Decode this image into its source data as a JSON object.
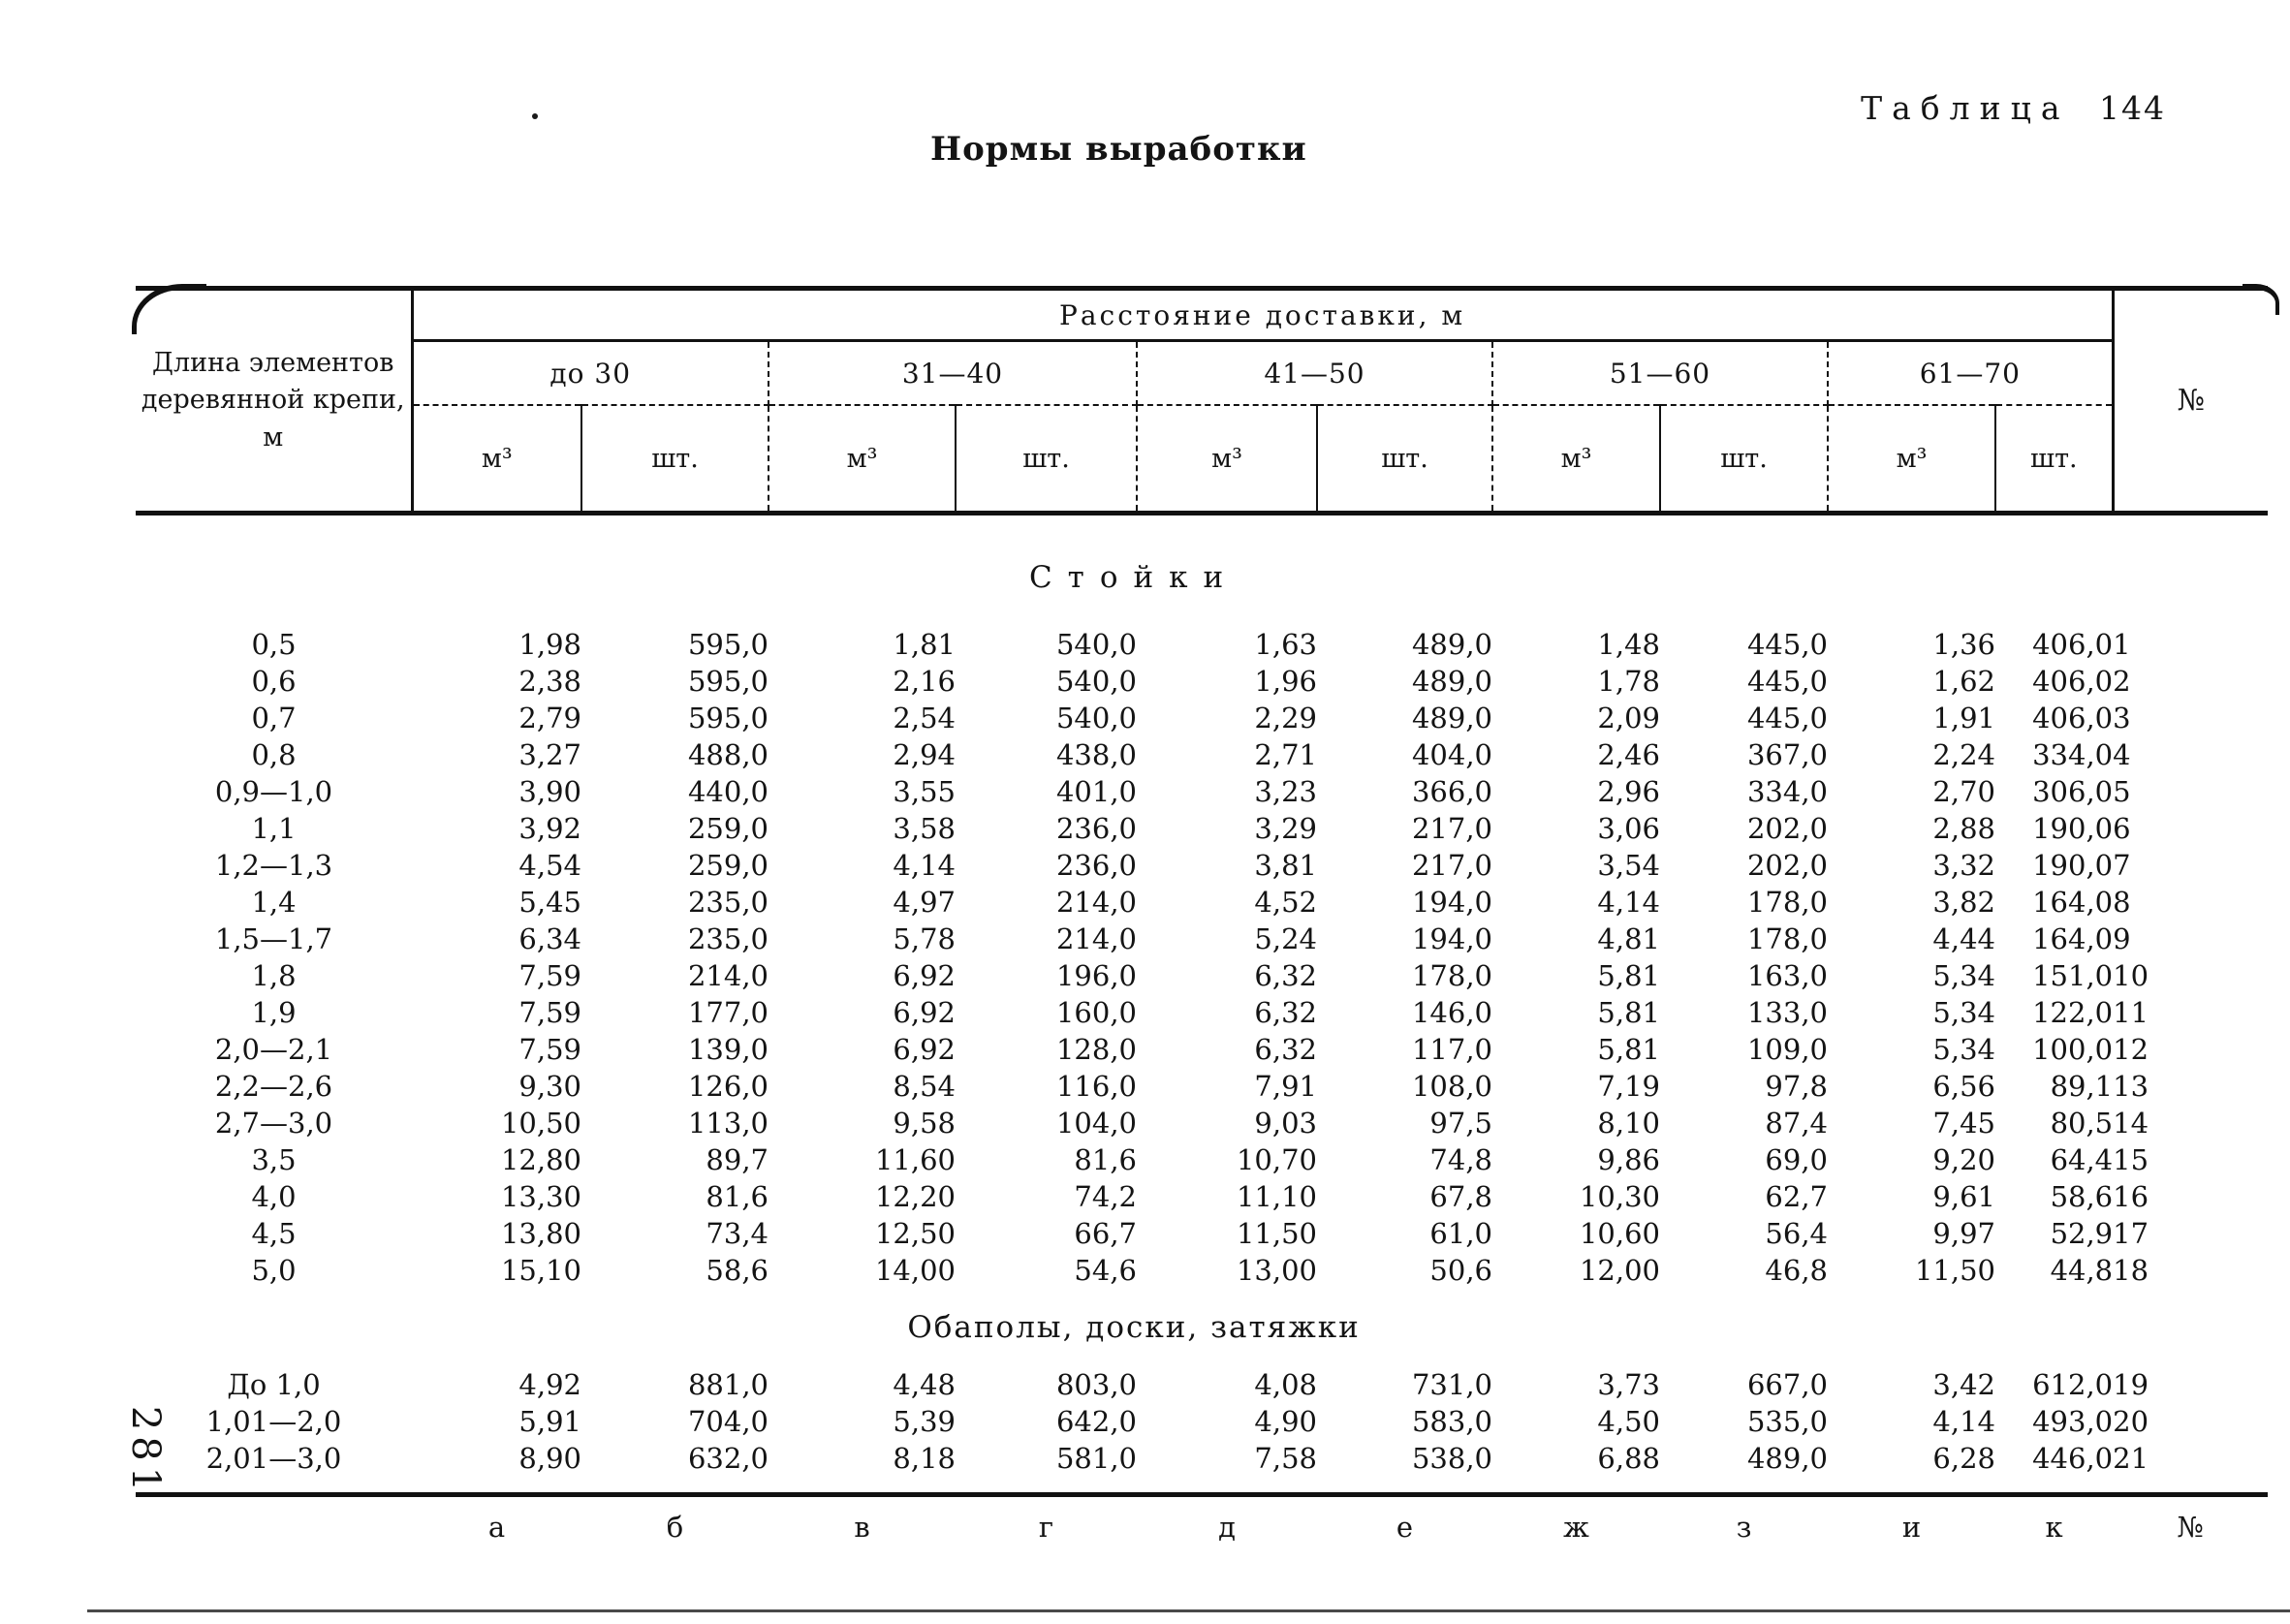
{
  "page": {
    "table_caption_word": "Таблица",
    "table_caption_number": "144",
    "title": "Нормы выработки",
    "page_number": "281"
  },
  "table": {
    "row_header": "Длина элементов деревянной крепи, м",
    "span_header": "Расстояние доставки, м",
    "distance_groups": [
      "до 30",
      "31—40",
      "41—50",
      "51—60",
      "61—70"
    ],
    "unit_volume": "м³",
    "unit_count": "шт.",
    "number_header": "№",
    "column_letters": [
      "а",
      "б",
      "в",
      "г",
      "д",
      "е",
      "ж",
      "з",
      "и",
      "к",
      "№"
    ],
    "sections": [
      {
        "title": "Стойки",
        "rows": [
          {
            "label": "0,5",
            "values": [
              "1,98",
              "595,0",
              "1,81",
              "540,0",
              "1,63",
              "489,0",
              "1,48",
              "445,0",
              "1,36",
              "406,0"
            ],
            "num": "1"
          },
          {
            "label": "0,6",
            "values": [
              "2,38",
              "595,0",
              "2,16",
              "540,0",
              "1,96",
              "489,0",
              "1,78",
              "445,0",
              "1,62",
              "406,0"
            ],
            "num": "2"
          },
          {
            "label": "0,7",
            "values": [
              "2,79",
              "595,0",
              "2,54",
              "540,0",
              "2,29",
              "489,0",
              "2,09",
              "445,0",
              "1,91",
              "406,0"
            ],
            "num": "3"
          },
          {
            "label": "0,8",
            "values": [
              "3,27",
              "488,0",
              "2,94",
              "438,0",
              "2,71",
              "404,0",
              "2,46",
              "367,0",
              "2,24",
              "334,0"
            ],
            "num": "4"
          },
          {
            "label": "0,9—1,0",
            "values": [
              "3,90",
              "440,0",
              "3,55",
              "401,0",
              "3,23",
              "366,0",
              "2,96",
              "334,0",
              "2,70",
              "306,0"
            ],
            "num": "5"
          },
          {
            "label": "1,1",
            "values": [
              "3,92",
              "259,0",
              "3,58",
              "236,0",
              "3,29",
              "217,0",
              "3,06",
              "202,0",
              "2,88",
              "190,0"
            ],
            "num": "6"
          },
          {
            "label": "1,2—1,3",
            "values": [
              "4,54",
              "259,0",
              "4,14",
              "236,0",
              "3,81",
              "217,0",
              "3,54",
              "202,0",
              "3,32",
              "190,0"
            ],
            "num": "7"
          },
          {
            "label": "1,4",
            "values": [
              "5,45",
              "235,0",
              "4,97",
              "214,0",
              "4,52",
              "194,0",
              "4,14",
              "178,0",
              "3,82",
              "164,0"
            ],
            "num": "8"
          },
          {
            "label": "1,5—1,7",
            "values": [
              "6,34",
              "235,0",
              "5,78",
              "214,0",
              "5,24",
              "194,0",
              "4,81",
              "178,0",
              "4,44",
              "164,0"
            ],
            "num": "9"
          },
          {
            "label": "1,8",
            "values": [
              "7,59",
              "214,0",
              "6,92",
              "196,0",
              "6,32",
              "178,0",
              "5,81",
              "163,0",
              "5,34",
              "151,0"
            ],
            "num": "10"
          },
          {
            "label": "1,9",
            "values": [
              "7,59",
              "177,0",
              "6,92",
              "160,0",
              "6,32",
              "146,0",
              "5,81",
              "133,0",
              "5,34",
              "122,0"
            ],
            "num": "11"
          },
          {
            "label": "2,0—2,1",
            "values": [
              "7,59",
              "139,0",
              "6,92",
              "128,0",
              "6,32",
              "117,0",
              "5,81",
              "109,0",
              "5,34",
              "100,0"
            ],
            "num": "12"
          },
          {
            "label": "2,2—2,6",
            "values": [
              "9,30",
              "126,0",
              "8,54",
              "116,0",
              "7,91",
              "108,0",
              "7,19",
              "97,8",
              "6,56",
              "89,1"
            ],
            "num": "13"
          },
          {
            "label": "2,7—3,0",
            "values": [
              "10,50",
              "113,0",
              "9,58",
              "104,0",
              "9,03",
              "97,5",
              "8,10",
              "87,4",
              "7,45",
              "80,5"
            ],
            "num": "14"
          },
          {
            "label": "3,5",
            "values": [
              "12,80",
              "89,7",
              "11,60",
              "81,6",
              "10,70",
              "74,8",
              "9,86",
              "69,0",
              "9,20",
              "64,4"
            ],
            "num": "15"
          },
          {
            "label": "4,0",
            "values": [
              "13,30",
              "81,6",
              "12,20",
              "74,2",
              "11,10",
              "67,8",
              "10,30",
              "62,7",
              "9,61",
              "58,6"
            ],
            "num": "16"
          },
          {
            "label": "4,5",
            "values": [
              "13,80",
              "73,4",
              "12,50",
              "66,7",
              "11,50",
              "61,0",
              "10,60",
              "56,4",
              "9,97",
              "52,9"
            ],
            "num": "17"
          },
          {
            "label": "5,0",
            "values": [
              "15,10",
              "58,6",
              "14,00",
              "54,6",
              "13,00",
              "50,6",
              "12,00",
              "46,8",
              "11,50",
              "44,8"
            ],
            "num": "18"
          }
        ]
      },
      {
        "title": "Обаполы, доски, затяжки",
        "rows": [
          {
            "label": "До 1,0",
            "values": [
              "4,92",
              "881,0",
              "4,48",
              "803,0",
              "4,08",
              "731,0",
              "3,73",
              "667,0",
              "3,42",
              "612,0"
            ],
            "num": "19"
          },
          {
            "label": "1,01—2,0",
            "values": [
              "5,91",
              "704,0",
              "5,39",
              "642,0",
              "4,90",
              "583,0",
              "4,50",
              "535,0",
              "4,14",
              "493,0"
            ],
            "num": "20"
          },
          {
            "label": "2,01—3,0",
            "values": [
              "8,90",
              "632,0",
              "8,18",
              "581,0",
              "7,58",
              "538,0",
              "6,88",
              "489,0",
              "6,28",
              "446,0"
            ],
            "num": "21"
          }
        ]
      }
    ]
  }
}
